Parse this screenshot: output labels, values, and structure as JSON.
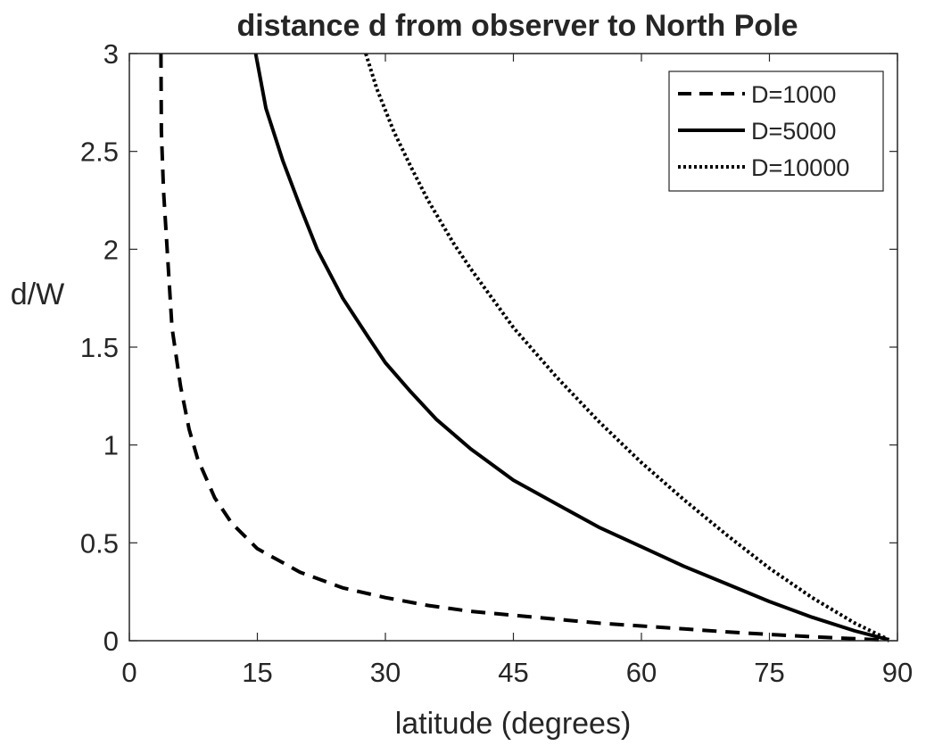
{
  "chart_data": {
    "type": "line",
    "title": "distance d from observer to North Pole",
    "xlabel": "latitude (degrees)",
    "ylabel": "d/W",
    "xlim": [
      0,
      90
    ],
    "ylim": [
      0,
      3
    ],
    "xticks": [
      0,
      15,
      30,
      45,
      60,
      75,
      90
    ],
    "xtick_labels": [
      "0",
      "15",
      "30",
      "45",
      "60",
      "75",
      "90"
    ],
    "yticks": [
      0,
      0.5,
      1,
      1.5,
      2,
      2.5,
      3
    ],
    "ytick_labels": [
      "0",
      "0.5",
      "1",
      "1.5",
      "2",
      "2.5",
      "3"
    ],
    "grid": false,
    "legend_position": "top-right",
    "series": [
      {
        "name": "D=1000",
        "style": "dashed",
        "color": "#000000",
        "x": [
          3.7,
          3.75,
          4.0,
          5.0,
          6.0,
          7.0,
          8.0,
          10.0,
          12.0,
          15.0,
          20.0,
          25.0,
          30.0,
          35.0,
          40.0,
          45.0,
          50.0,
          55.0,
          60.0,
          65.0,
          70.0,
          75.0,
          80.0,
          85.0,
          89.0
        ],
        "y": [
          3.0,
          2.6,
          2.3,
          1.6,
          1.3,
          1.08,
          0.93,
          0.73,
          0.6,
          0.47,
          0.35,
          0.27,
          0.22,
          0.18,
          0.15,
          0.13,
          0.11,
          0.09,
          0.075,
          0.06,
          0.045,
          0.032,
          0.02,
          0.01,
          0.002
        ]
      },
      {
        "name": "D=5000",
        "style": "solid",
        "color": "#000000",
        "x": [
          14.8,
          16.0,
          18.0,
          20.0,
          22.0,
          25.0,
          28.0,
          30.0,
          33.0,
          36.0,
          40.0,
          45.0,
          50.0,
          55.0,
          60.0,
          65.0,
          70.0,
          75.0,
          80.0,
          85.0,
          89.0
        ],
        "y": [
          3.0,
          2.72,
          2.45,
          2.22,
          2.0,
          1.75,
          1.55,
          1.42,
          1.27,
          1.13,
          0.98,
          0.82,
          0.7,
          0.58,
          0.48,
          0.38,
          0.29,
          0.2,
          0.12,
          0.05,
          0.005
        ]
      },
      {
        "name": "D=10000",
        "style": "dotted",
        "color": "#000000",
        "x": [
          27.7,
          29.0,
          31.0,
          33.0,
          35.0,
          38.0,
          40.0,
          43.0,
          45.0,
          50.0,
          55.0,
          60.0,
          65.0,
          70.0,
          75.0,
          80.0,
          85.0,
          89.0
        ],
        "y": [
          3.0,
          2.82,
          2.6,
          2.42,
          2.25,
          2.03,
          1.9,
          1.72,
          1.6,
          1.35,
          1.12,
          0.91,
          0.72,
          0.54,
          0.37,
          0.22,
          0.09,
          0.005
        ]
      }
    ]
  }
}
